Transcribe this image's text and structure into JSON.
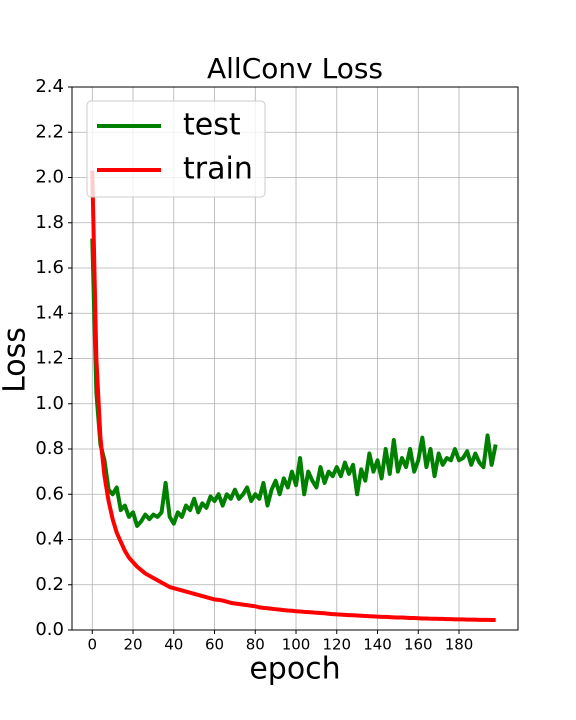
{
  "chart_data": {
    "type": "line",
    "title": "AllConv Loss",
    "xlabel": "epoch",
    "ylabel": "Loss",
    "x": [
      0,
      2,
      4,
      6,
      8,
      10,
      12,
      14,
      16,
      18,
      20,
      22,
      24,
      26,
      28,
      30,
      32,
      34,
      36,
      38,
      40,
      42,
      44,
      46,
      48,
      50,
      52,
      54,
      56,
      58,
      60,
      62,
      64,
      66,
      68,
      70,
      72,
      74,
      76,
      78,
      80,
      82,
      84,
      86,
      88,
      90,
      92,
      94,
      96,
      98,
      100,
      102,
      104,
      106,
      108,
      110,
      112,
      114,
      116,
      118,
      120,
      122,
      124,
      126,
      128,
      130,
      132,
      134,
      136,
      138,
      140,
      142,
      144,
      146,
      148,
      150,
      152,
      154,
      156,
      158,
      160,
      162,
      164,
      166,
      168,
      170,
      172,
      174,
      176,
      178,
      180,
      182,
      184,
      186,
      188,
      190,
      192,
      194,
      196,
      198
    ],
    "series": [
      {
        "name": "test",
        "color": "#008000",
        "values": [
          1.73,
          1.05,
          0.82,
          0.75,
          0.62,
          0.6,
          0.63,
          0.53,
          0.55,
          0.5,
          0.52,
          0.46,
          0.48,
          0.51,
          0.49,
          0.51,
          0.5,
          0.52,
          0.65,
          0.5,
          0.47,
          0.52,
          0.5,
          0.55,
          0.53,
          0.58,
          0.52,
          0.56,
          0.54,
          0.59,
          0.57,
          0.6,
          0.55,
          0.6,
          0.58,
          0.62,
          0.58,
          0.6,
          0.63,
          0.57,
          0.6,
          0.58,
          0.65,
          0.55,
          0.62,
          0.66,
          0.6,
          0.67,
          0.63,
          0.7,
          0.64,
          0.76,
          0.6,
          0.7,
          0.66,
          0.63,
          0.72,
          0.65,
          0.7,
          0.68,
          0.72,
          0.68,
          0.74,
          0.69,
          0.73,
          0.6,
          0.71,
          0.66,
          0.78,
          0.7,
          0.75,
          0.67,
          0.8,
          0.69,
          0.84,
          0.7,
          0.76,
          0.72,
          0.8,
          0.7,
          0.75,
          0.85,
          0.72,
          0.8,
          0.68,
          0.78,
          0.73,
          0.76,
          0.75,
          0.8,
          0.75,
          0.76,
          0.79,
          0.73,
          0.78,
          0.74,
          0.72,
          0.86,
          0.73,
          0.82
        ]
      },
      {
        "name": "train",
        "color": "#ff0000",
        "values": [
          2.03,
          1.2,
          0.85,
          0.68,
          0.57,
          0.49,
          0.43,
          0.39,
          0.35,
          0.32,
          0.3,
          0.28,
          0.265,
          0.25,
          0.24,
          0.23,
          0.22,
          0.21,
          0.2,
          0.19,
          0.185,
          0.18,
          0.175,
          0.17,
          0.165,
          0.16,
          0.155,
          0.15,
          0.145,
          0.14,
          0.135,
          0.133,
          0.13,
          0.125,
          0.12,
          0.117,
          0.115,
          0.112,
          0.11,
          0.107,
          0.105,
          0.1,
          0.098,
          0.096,
          0.094,
          0.092,
          0.09,
          0.088,
          0.086,
          0.085,
          0.083,
          0.082,
          0.08,
          0.079,
          0.078,
          0.076,
          0.075,
          0.074,
          0.072,
          0.07,
          0.069,
          0.068,
          0.067,
          0.066,
          0.065,
          0.064,
          0.063,
          0.062,
          0.061,
          0.06,
          0.059,
          0.058,
          0.058,
          0.057,
          0.056,
          0.055,
          0.055,
          0.054,
          0.053,
          0.053,
          0.052,
          0.051,
          0.051,
          0.05,
          0.05,
          0.049,
          0.049,
          0.048,
          0.048,
          0.047,
          0.047,
          0.047,
          0.046,
          0.046,
          0.046,
          0.045,
          0.045,
          0.045,
          0.044,
          0.044
        ]
      }
    ],
    "xlim": [
      -9.95,
      208.95
    ],
    "xticks": [
      0,
      20,
      40,
      60,
      80,
      100,
      120,
      140,
      160,
      180
    ],
    "ylim": [
      0,
      2.4
    ],
    "yticks": [
      {
        "value": 0,
        "label": "0.0"
      },
      {
        "value": 0.2,
        "label": "0.2"
      },
      {
        "value": 0.4,
        "label": "0.4"
      },
      {
        "value": 0.6,
        "label": "0.6"
      },
      {
        "value": 0.8,
        "label": "0.8"
      },
      {
        "value": 1,
        "label": "1.0"
      },
      {
        "value": 1.2,
        "label": "1.2"
      },
      {
        "value": 1.4,
        "label": "1.4"
      },
      {
        "value": 1.6,
        "label": "1.6"
      },
      {
        "value": 1.8,
        "label": "1.8"
      },
      {
        "value": 2,
        "label": "2.0"
      },
      {
        "value": 2.2,
        "label": "2.2"
      },
      {
        "value": 2.4,
        "label": "2.4"
      }
    ],
    "grid": true,
    "legend": "upper left"
  }
}
